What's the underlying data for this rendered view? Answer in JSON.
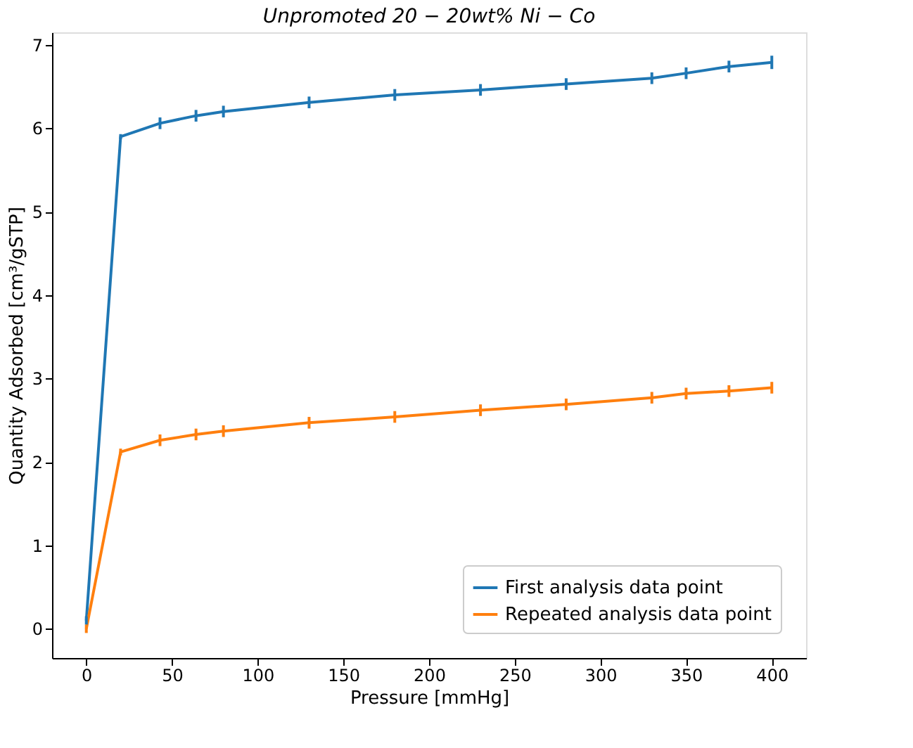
{
  "chart_data": {
    "type": "line",
    "title": "Unpromoted 20 − 20wt% Ni − Co",
    "xlabel": "Pressure [mmHg]",
    "ylabel": "Quantity Adsorbed [cm³/gSTP]",
    "x": [
      0,
      20,
      43,
      64,
      80,
      130,
      180,
      230,
      280,
      330,
      350,
      375,
      400
    ],
    "series": [
      {
        "name": "First analysis data point",
        "color": "#1f77b4",
        "values": [
          0.1,
          5.9,
          6.06,
          6.15,
          6.2,
          6.31,
          6.4,
          6.46,
          6.53,
          6.6,
          6.66,
          6.74,
          6.79
        ],
        "errors": [
          0.05,
          0.03,
          0.07,
          0.07,
          0.07,
          0.07,
          0.07,
          0.07,
          0.07,
          0.07,
          0.07,
          0.07,
          0.08
        ]
      },
      {
        "name": "Repeated analysis data point",
        "color": "#ff7f0e",
        "values": [
          0.0,
          2.12,
          2.26,
          2.33,
          2.37,
          2.47,
          2.54,
          2.62,
          2.69,
          2.77,
          2.82,
          2.85,
          2.89
        ],
        "errors": [
          0.05,
          0.04,
          0.07,
          0.07,
          0.07,
          0.07,
          0.07,
          0.07,
          0.07,
          0.07,
          0.07,
          0.07,
          0.07
        ]
      }
    ],
    "xlim": [
      -20,
      420
    ],
    "xticks": [
      0,
      50,
      100,
      150,
      200,
      250,
      300,
      350,
      400
    ],
    "ylim": [
      -0.35,
      7.15
    ],
    "yticks": [
      0,
      1,
      2,
      3,
      4,
      5,
      6,
      7
    ],
    "grid": false,
    "legend": "bottom right",
    "marker": "none",
    "line_style": "solid"
  }
}
